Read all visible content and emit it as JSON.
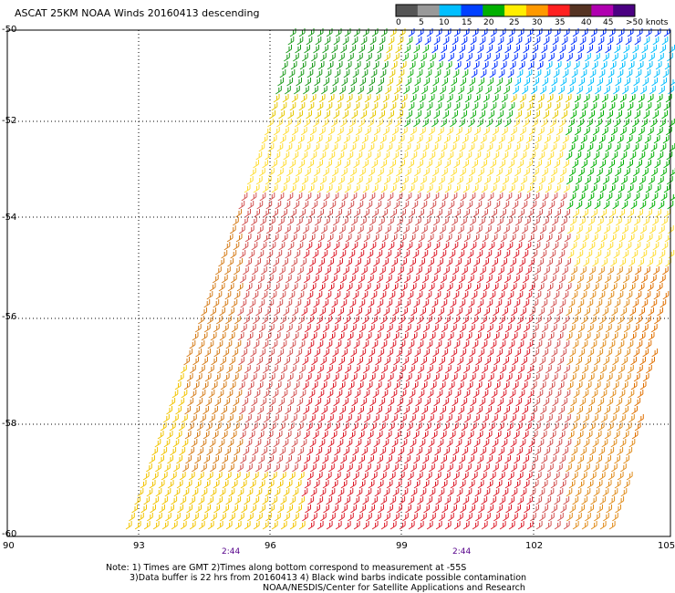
{
  "title": "ASCAT 25KM NOAA Winds 20160413 descending",
  "colorbar": {
    "labels": [
      "0",
      "5",
      "10",
      "15",
      "20",
      "25",
      "30",
      "35",
      "40",
      "45",
      ">50 knots"
    ],
    "colors": [
      "#555555",
      "#999999",
      "#00bfff",
      "#0040ff",
      "#00b000",
      "#ffee00",
      "#ff9900",
      "#ff2020",
      "#553322",
      "#b000b0",
      "#4b0082"
    ]
  },
  "axes": {
    "latitudes": [
      "-50",
      "-52",
      "-54",
      "-56",
      "-58",
      "-60"
    ],
    "longitudes": [
      "90",
      "93",
      "96",
      "99",
      "102",
      "105"
    ]
  },
  "times": [
    "2:44",
    "2:44"
  ],
  "notes": [
    "Note: 1) Times are GMT 2)Times along bottom correspond to measurement at -55S",
    "3)Data buffer is 22 hrs from 20160413 4) Black wind barbs indicate possible contamination",
    "NOAA/NESDIS/Center for Satellite Applications and Research"
  ]
}
